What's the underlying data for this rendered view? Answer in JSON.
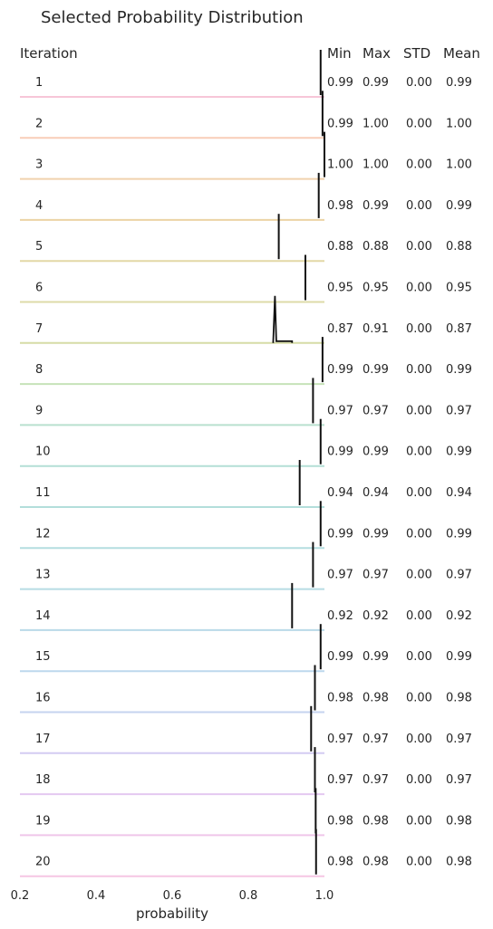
{
  "chart_data": {
    "type": "ridgeline",
    "title": "Selected Probability Distribution",
    "xlabel": "probability",
    "ylabel": "Iteration",
    "xlim": [
      0.2,
      1.0
    ],
    "xticks": [
      "0.2",
      "0.4",
      "0.6",
      "0.8",
      "1.0"
    ],
    "grid": false,
    "column_headers": [
      "Min",
      "Max",
      "STD",
      "Mean"
    ],
    "rows": [
      {
        "iteration": "1",
        "min": "0.99",
        "max": "0.99",
        "std": "0.00",
        "mean": "0.99",
        "peak": 0.99,
        "color": "#f7c6d8"
      },
      {
        "iteration": "2",
        "min": "0.99",
        "max": "1.00",
        "std": "0.00",
        "mean": "1.00",
        "peak": 0.995,
        "color": "#f8cdb8"
      },
      {
        "iteration": "3",
        "min": "1.00",
        "max": "1.00",
        "std": "0.00",
        "mean": "1.00",
        "peak": 1.0,
        "color": "#f0d2ae"
      },
      {
        "iteration": "4",
        "min": "0.98",
        "max": "0.99",
        "std": "0.00",
        "mean": "0.99",
        "peak": 0.985,
        "color": "#ecd3a5"
      },
      {
        "iteration": "5",
        "min": "0.88",
        "max": "0.88",
        "std": "0.00",
        "mean": "0.88",
        "peak": 0.88,
        "color": "#e3d8a6"
      },
      {
        "iteration": "6",
        "min": "0.95",
        "max": "0.95",
        "std": "0.00",
        "mean": "0.95",
        "peak": 0.95,
        "color": "#dddba8"
      },
      {
        "iteration": "7",
        "min": "0.87",
        "max": "0.91",
        "std": "0.00",
        "mean": "0.87",
        "peak": 0.87,
        "tail": 0.915,
        "color": "#d6dca6"
      },
      {
        "iteration": "8",
        "min": "0.99",
        "max": "0.99",
        "std": "0.00",
        "mean": "0.99",
        "peak": 0.995,
        "color": "#c6e2b8"
      },
      {
        "iteration": "9",
        "min": "0.97",
        "max": "0.97",
        "std": "0.00",
        "mean": "0.97",
        "peak": 0.97,
        "color": "#b9e0cf"
      },
      {
        "iteration": "10",
        "min": "0.99",
        "max": "0.99",
        "std": "0.00",
        "mean": "0.99",
        "peak": 0.99,
        "color": "#b4dfd6"
      },
      {
        "iteration": "11",
        "min": "0.94",
        "max": "0.94",
        "std": "0.00",
        "mean": "0.94",
        "peak": 0.935,
        "color": "#b3dedb"
      },
      {
        "iteration": "12",
        "min": "0.99",
        "max": "0.99",
        "std": "0.00",
        "mean": "0.99",
        "peak": 0.99,
        "color": "#b4dde0"
      },
      {
        "iteration": "13",
        "min": "0.97",
        "max": "0.97",
        "std": "0.00",
        "mean": "0.97",
        "peak": 0.97,
        "color": "#b6dce4"
      },
      {
        "iteration": "14",
        "min": "0.92",
        "max": "0.92",
        "std": "0.00",
        "mean": "0.92",
        "peak": 0.915,
        "color": "#b9dae8"
      },
      {
        "iteration": "15",
        "min": "0.99",
        "max": "0.99",
        "std": "0.00",
        "mean": "0.99",
        "peak": 0.99,
        "color": "#bdd8ed"
      },
      {
        "iteration": "16",
        "min": "0.98",
        "max": "0.98",
        "std": "0.00",
        "mean": "0.98",
        "peak": 0.975,
        "color": "#c6d3ef"
      },
      {
        "iteration": "17",
        "min": "0.97",
        "max": "0.97",
        "std": "0.00",
        "mean": "0.97",
        "peak": 0.965,
        "color": "#d4ccf2"
      },
      {
        "iteration": "18",
        "min": "0.97",
        "max": "0.97",
        "std": "0.00",
        "mean": "0.97",
        "peak": 0.975,
        "color": "#e4c8f1"
      },
      {
        "iteration": "19",
        "min": "0.98",
        "max": "0.98",
        "std": "0.00",
        "mean": "0.98",
        "peak": 0.977,
        "color": "#efc6ea"
      },
      {
        "iteration": "20",
        "min": "0.98",
        "max": "0.98",
        "std": "0.00",
        "mean": "0.98",
        "peak": 0.978,
        "color": "#f5c6e4"
      }
    ]
  }
}
